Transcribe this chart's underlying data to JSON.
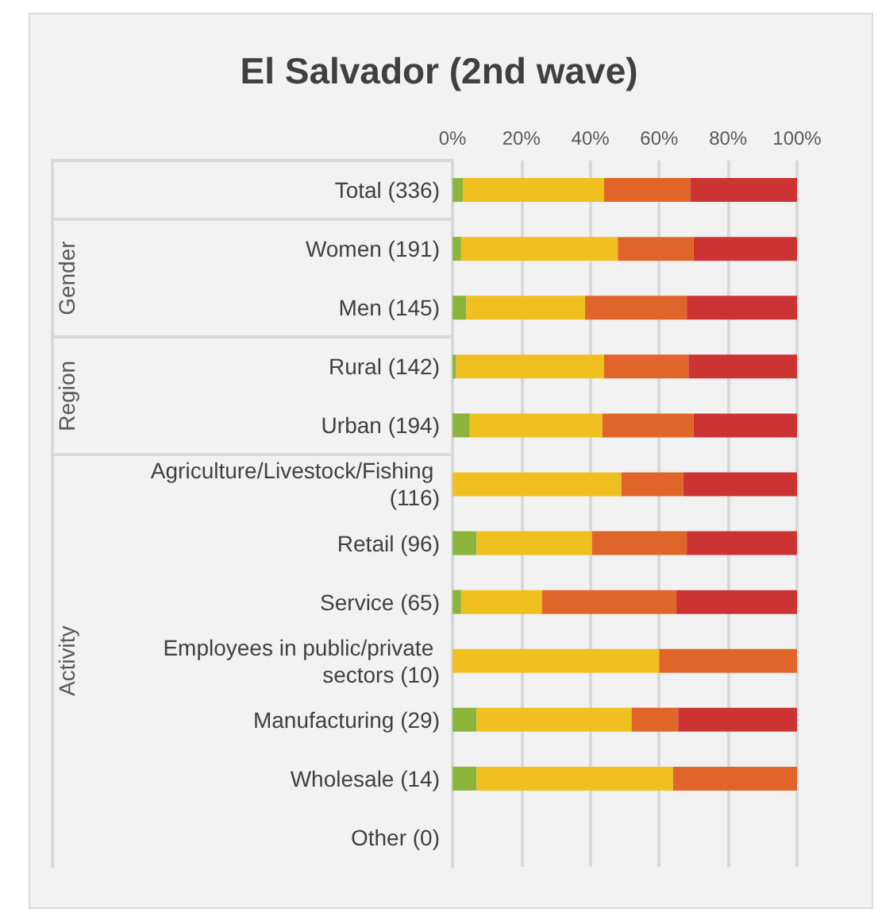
{
  "chart_data": {
    "type": "bar",
    "orientation": "horizontal",
    "stacked": true,
    "title": "El Salvador (2nd wave)",
    "categories": [
      "Total (336)",
      "Women (191)",
      "Men (145)",
      "Rural (142)",
      "Urban (194)",
      "Agriculture/Livestock/Fishing (116)",
      "Retail (96)",
      "Service (65)",
      "Employees in public/private sectors (10)",
      "Manufacturing (29)",
      "Wholesale (14)",
      "Other (0)"
    ],
    "series": [
      {
        "color": "#8ab43a",
        "values": [
          3,
          2.5,
          4,
          1,
          5,
          0,
          7,
          2.5,
          0,
          7,
          7,
          null
        ]
      },
      {
        "color": "#f0bf20",
        "values": [
          41,
          45.5,
          34.5,
          43,
          38.5,
          49,
          33.5,
          23.5,
          60,
          45,
          57,
          null
        ]
      },
      {
        "color": "#e0652a",
        "values": [
          25,
          22,
          29.5,
          24.5,
          26.5,
          18,
          27.5,
          39,
          40,
          13.5,
          36,
          null
        ]
      },
      {
        "color": "#cc3333",
        "values": [
          31,
          30,
          32,
          31.5,
          30,
          33,
          32,
          35,
          0,
          34.5,
          0,
          null
        ]
      }
    ],
    "annotations": [
      "Gender",
      "Region",
      "Activity"
    ],
    "xlim": [
      0,
      100
    ],
    "xticks": [
      {
        "value": 0,
        "label": "0%"
      },
      {
        "value": 20,
        "label": "20%"
      },
      {
        "value": 40,
        "label": "40%"
      },
      {
        "value": 60,
        "label": "60%"
      },
      {
        "value": 80,
        "label": "80%"
      },
      {
        "value": 100,
        "label": "100%"
      }
    ],
    "grid": "x"
  }
}
